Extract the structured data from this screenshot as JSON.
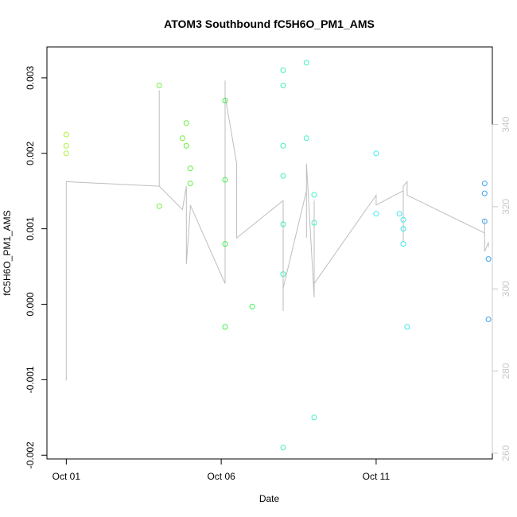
{
  "chart_data": {
    "type": "scatter",
    "title": "ATOM3 Southbound fC5H6O_PM1_AMS",
    "xlabel": "Date",
    "ylabel": "fC5H6O_PM1_AMS",
    "x_ticks": [
      {
        "value": "2016-10-01",
        "label": "Oct 01"
      },
      {
        "value": "2016-10-06",
        "label": "Oct 06"
      },
      {
        "value": "2016-10-11",
        "label": "Oct 11"
      }
    ],
    "y_ticks": [
      {
        "value": -0.002,
        "label": "-0.002"
      },
      {
        "value": -0.001,
        "label": "-0.001"
      },
      {
        "value": 0.0,
        "label": "0.000"
      },
      {
        "value": 0.001,
        "label": "0.001"
      },
      {
        "value": 0.002,
        "label": "0.002"
      },
      {
        "value": 0.003,
        "label": "0.003"
      }
    ],
    "y2_ticks": [
      {
        "value": 260,
        "label": "260"
      },
      {
        "value": 280,
        "label": "280"
      },
      {
        "value": 300,
        "label": "300"
      },
      {
        "value": 320,
        "label": "320"
      },
      {
        "value": 340,
        "label": "340"
      }
    ],
    "xlim": [
      "2016-09-30 09:00",
      "2016-10-14 18:00"
    ],
    "ylim": [
      -0.00205,
      0.00341
    ],
    "y2lim": [
      258.6,
      358.9
    ],
    "grid": false,
    "legend": "none",
    "series": [
      {
        "type": "points",
        "points": [
          {
            "x": "2016-10-01 00:00",
            "y": 0.00225,
            "color": "#a9f23c"
          },
          {
            "x": "2016-10-01 00:00",
            "y": 0.0021,
            "color": "#a9f23c"
          },
          {
            "x": "2016-10-01 00:00",
            "y": 0.002,
            "color": "#a9f23c"
          },
          {
            "x": "2016-10-04 00:00",
            "y": 0.0029,
            "color": "#6ef03c"
          },
          {
            "x": "2016-10-04 00:00",
            "y": 0.0013,
            "color": "#6ef03c"
          },
          {
            "x": "2016-10-04 18:00",
            "y": 0.0022,
            "color": "#6ef03c"
          },
          {
            "x": "2016-10-04 21:00",
            "y": 0.0024,
            "color": "#5ff03c"
          },
          {
            "x": "2016-10-04 21:00",
            "y": 0.0021,
            "color": "#5ff03c"
          },
          {
            "x": "2016-10-05 00:00",
            "y": 0.0018,
            "color": "#5ff03c"
          },
          {
            "x": "2016-10-05 00:00",
            "y": 0.0016,
            "color": "#5ff03c"
          },
          {
            "x": "2016-10-06 03:00",
            "y": 0.0027,
            "color": "#3ef04a"
          },
          {
            "x": "2016-10-06 03:00",
            "y": 0.00165,
            "color": "#3ef04a"
          },
          {
            "x": "2016-10-06 03:00",
            "y": 0.0008,
            "color": "#3ef04a"
          },
          {
            "x": "2016-10-06 03:00",
            "y": -0.0003,
            "color": "#3ef04a"
          },
          {
            "x": "2016-10-07 00:00",
            "y": -3e-05,
            "color": "#3ef05a"
          },
          {
            "x": "2016-10-08 00:00",
            "y": 0.0031,
            "color": "#3ff0b2"
          },
          {
            "x": "2016-10-08 00:00",
            "y": 0.0029,
            "color": "#3ff0b2"
          },
          {
            "x": "2016-10-08 00:00",
            "y": 0.0021,
            "color": "#3ff0b2"
          },
          {
            "x": "2016-10-08 00:00",
            "y": 0.0017,
            "color": "#3ff0b2"
          },
          {
            "x": "2016-10-08 00:00",
            "y": 0.00106,
            "color": "#3ff0b2"
          },
          {
            "x": "2016-10-08 00:00",
            "y": 0.0004,
            "color": "#3ff0b2"
          },
          {
            "x": "2016-10-08 00:00",
            "y": -0.0019,
            "color": "#3ff0b2"
          },
          {
            "x": "2016-10-08 18:00",
            "y": 0.0032,
            "color": "#3ff0c8"
          },
          {
            "x": "2016-10-08 18:00",
            "y": 0.0022,
            "color": "#3ff0c8"
          },
          {
            "x": "2016-10-09 00:00",
            "y": 0.00145,
            "color": "#3ff0c8"
          },
          {
            "x": "2016-10-09 00:00",
            "y": 0.00108,
            "color": "#3ff0c8"
          },
          {
            "x": "2016-10-09 00:00",
            "y": -0.0015,
            "color": "#3ff0c8"
          },
          {
            "x": "2016-10-11 00:00",
            "y": 0.002,
            "color": "#3eeaf0"
          },
          {
            "x": "2016-10-11 00:00",
            "y": 0.0012,
            "color": "#3eeaf0"
          },
          {
            "x": "2016-10-11 18:00",
            "y": 0.0012,
            "color": "#3ee6f0"
          },
          {
            "x": "2016-10-11 21:00",
            "y": 0.00112,
            "color": "#3ee6f0"
          },
          {
            "x": "2016-10-11 21:00",
            "y": 0.001,
            "color": "#3ee6f0"
          },
          {
            "x": "2016-10-11 21:00",
            "y": 0.0008,
            "color": "#3ee6f0"
          },
          {
            "x": "2016-10-12 00:00",
            "y": -0.0003,
            "color": "#3ee6f0"
          },
          {
            "x": "2016-10-14 12:00",
            "y": 0.0016,
            "color": "#3aa6f0"
          },
          {
            "x": "2016-10-14 12:00",
            "y": 0.00147,
            "color": "#3aa6f0"
          },
          {
            "x": "2016-10-14 12:00",
            "y": 0.0011,
            "color": "#3aa6f0"
          },
          {
            "x": "2016-10-14 15:00",
            "y": 0.0006,
            "color": "#3aa6f0"
          },
          {
            "x": "2016-10-14 15:00",
            "y": -0.0002,
            "color": "#3aa6f0"
          }
        ]
      },
      {
        "type": "line",
        "axis": "right",
        "color": "#bebebe",
        "points": [
          {
            "x": "2016-10-01 00:00",
            "y": 277.7
          },
          {
            "x": "2016-10-01 00:00",
            "y": 326.1
          },
          {
            "x": "2016-10-04 00:00",
            "y": 325.0
          },
          {
            "x": "2016-10-04 00:00",
            "y": 348.4
          },
          {
            "x": "2016-10-04 00:00",
            "y": 325.0
          },
          {
            "x": "2016-10-04 18:00",
            "y": 319.3
          },
          {
            "x": "2016-10-04 21:00",
            "y": 325.0
          },
          {
            "x": "2016-10-04 21:00",
            "y": 306.0
          },
          {
            "x": "2016-10-05 00:00",
            "y": 319.3
          },
          {
            "x": "2016-10-05 00:00",
            "y": 320.4
          },
          {
            "x": "2016-10-06 03:00",
            "y": 301.3
          },
          {
            "x": "2016-10-06 03:00",
            "y": 314.7
          },
          {
            "x": "2016-10-06 03:00",
            "y": 350.7
          },
          {
            "x": "2016-10-06 03:00",
            "y": 312.4
          },
          {
            "x": "2016-10-06 03:00",
            "y": 313.6
          },
          {
            "x": "2016-10-06 03:00",
            "y": 346.9
          },
          {
            "x": "2016-10-06 12:00",
            "y": 330.5
          },
          {
            "x": "2016-10-06 12:00",
            "y": 312.4
          },
          {
            "x": "2016-10-08 00:00",
            "y": 321.5
          },
          {
            "x": "2016-10-08 00:00",
            "y": 294.6
          },
          {
            "x": "2016-10-08 00:00",
            "y": 321.5
          },
          {
            "x": "2016-10-08 00:00",
            "y": 300.2
          },
          {
            "x": "2016-10-08 18:00",
            "y": 323.9
          },
          {
            "x": "2016-10-08 18:00",
            "y": 312.4
          },
          {
            "x": "2016-10-08 18:00",
            "y": 330.5
          },
          {
            "x": "2016-10-09 00:00",
            "y": 297.9
          },
          {
            "x": "2016-10-09 00:00",
            "y": 321.5
          },
          {
            "x": "2016-10-09 00:00",
            "y": 301.3
          },
          {
            "x": "2016-10-11 00:00",
            "y": 322.8
          },
          {
            "x": "2016-10-11 00:00",
            "y": 320.4
          },
          {
            "x": "2016-10-11 21:00",
            "y": 323.9
          },
          {
            "x": "2016-10-11 21:00",
            "y": 311.3
          },
          {
            "x": "2016-10-11 21:00",
            "y": 325.0
          },
          {
            "x": "2016-10-12 00:00",
            "y": 326.1
          },
          {
            "x": "2016-10-12 00:00",
            "y": 322.8
          },
          {
            "x": "2016-10-14 12:00",
            "y": 313.6
          },
          {
            "x": "2016-10-14 12:00",
            "y": 317.0
          },
          {
            "x": "2016-10-14 12:00",
            "y": 309.1
          },
          {
            "x": "2016-10-14 15:00",
            "y": 311.3
          },
          {
            "x": "2016-10-14 15:00",
            "y": 310.2
          }
        ]
      }
    ]
  }
}
